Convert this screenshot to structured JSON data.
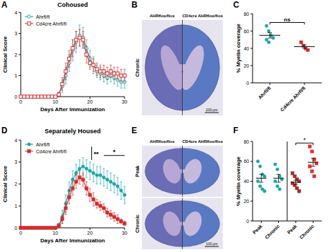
{
  "chart_data": [
    {
      "type": "line",
      "panel": "A",
      "title": "Cohoused",
      "x_label": "Days After Immunization",
      "y_label": "Clinical Score",
      "x": [
        0,
        1,
        2,
        3,
        4,
        5,
        6,
        7,
        8,
        9,
        10,
        11,
        12,
        13,
        14,
        15,
        16,
        17,
        18,
        19,
        20,
        21,
        22,
        23,
        24,
        25,
        26,
        27,
        28,
        29,
        30
      ],
      "xlim": [
        0,
        30
      ],
      "xticks": [
        0,
        10,
        20,
        30
      ],
      "ylim": [
        0,
        4
      ],
      "yticks": [
        0,
        1,
        2,
        3,
        4
      ],
      "legend": "upper left",
      "series": [
        {
          "name": "Ahrfl/fl",
          "color": "#1ba5a6",
          "marker": "circle-open",
          "values": [
            0,
            0,
            0,
            0,
            0,
            0,
            0,
            0,
            0,
            0,
            0,
            0.1,
            0.5,
            1.0,
            1.6,
            2.2,
            2.6,
            2.9,
            2.8,
            2.3,
            1.8,
            1.5,
            1.2,
            1.1,
            1.0,
            0.9,
            1.0,
            0.9,
            0.8,
            0.7,
            0.7
          ],
          "errors": [
            0,
            0,
            0,
            0,
            0,
            0,
            0,
            0,
            0,
            0,
            0,
            0.1,
            0.3,
            0.4,
            0.4,
            0.5,
            0.5,
            0.5,
            0.5,
            0.4,
            0.4,
            0.4,
            0.3,
            0.3,
            0.3,
            0.3,
            0.3,
            0.3,
            0.3,
            0.3,
            0.3
          ]
        },
        {
          "name": "Cd4cre Ahrfl/fl",
          "color": "#d42a2a",
          "marker": "square-open",
          "values": [
            0,
            0,
            0,
            0,
            0,
            0,
            0,
            0,
            0,
            0,
            0,
            0.1,
            0.6,
            1.2,
            1.8,
            2.3,
            2.7,
            2.8,
            2.7,
            2.0,
            1.6,
            1.5,
            1.3,
            1.2,
            1.2,
            1.1,
            1.2,
            1.1,
            1.1,
            1.0,
            1.0
          ],
          "errors": [
            0,
            0,
            0,
            0,
            0,
            0,
            0,
            0,
            0,
            0,
            0,
            0.1,
            0.3,
            0.4,
            0.4,
            0.4,
            0.4,
            0.4,
            0.4,
            0.4,
            0.3,
            0.3,
            0.3,
            0.3,
            0.3,
            0.3,
            0.3,
            0.3,
            0.3,
            0.3,
            0.3
          ]
        }
      ],
      "annotations": []
    },
    {
      "type": "dot",
      "panel": "C",
      "y_label": "% Myelin coverage",
      "categories": [
        "Ahrfl/fl",
        "Cd4cre Ahrfl/fl"
      ],
      "ylim": [
        0,
        80
      ],
      "yticks": [
        0,
        20,
        40,
        60,
        80
      ],
      "groups": [
        {
          "color": "#1ba5a6",
          "marker": "circle",
          "values": [
            66,
            60,
            55,
            52,
            50,
            47
          ],
          "mean": 55,
          "error": 3
        },
        {
          "color": "#d42a2a",
          "marker": "square",
          "values": [
            47,
            43,
            40,
            38
          ],
          "mean": 42,
          "error": 2
        }
      ],
      "annotations": [
        {
          "text": "ns",
          "between": [
            0,
            1
          ]
        }
      ]
    },
    {
      "type": "line",
      "panel": "D",
      "title": "Separately Housed",
      "x_label": "Days After Immunization",
      "y_label": "Clinical Score",
      "x": [
        0,
        1,
        2,
        3,
        4,
        5,
        6,
        7,
        8,
        9,
        10,
        11,
        12,
        13,
        14,
        15,
        16,
        17,
        18,
        19,
        20,
        21,
        22,
        23,
        24,
        25,
        26,
        27,
        28,
        29,
        30
      ],
      "xlim": [
        0,
        30
      ],
      "xticks": [
        0,
        10,
        20,
        30
      ],
      "ylim": [
        0,
        4
      ],
      "yticks": [
        0,
        1,
        2,
        3,
        4
      ],
      "legend": "upper left",
      "series": [
        {
          "name": "Ahrfl/fl",
          "color": "#1ba5a6",
          "marker": "circle",
          "values": [
            0,
            0,
            0,
            0,
            0,
            0,
            0,
            0,
            0,
            0,
            0,
            0.1,
            0.5,
            1.1,
            1.7,
            2.2,
            2.5,
            2.7,
            2.8,
            2.7,
            2.6,
            2.5,
            2.4,
            2.4,
            2.3,
            2.2,
            2.1,
            2.0,
            1.9,
            1.7,
            1.5
          ],
          "errors": [
            0,
            0,
            0,
            0,
            0,
            0,
            0,
            0,
            0,
            0,
            0,
            0.1,
            0.3,
            0.4,
            0.4,
            0.4,
            0.4,
            0.4,
            0.4,
            0.4,
            0.4,
            0.4,
            0.4,
            0.4,
            0.4,
            0.4,
            0.4,
            0.4,
            0.4,
            0.4,
            0.4
          ]
        },
        {
          "name": "Cd4cre Ahrfl/fl",
          "color": "#d42a2a",
          "marker": "square",
          "values": [
            0,
            0,
            0,
            0,
            0,
            0,
            0,
            0,
            0,
            0,
            0,
            0.1,
            0.4,
            0.9,
            1.4,
            1.8,
            2.1,
            2.3,
            2.2,
            1.8,
            1.5,
            1.3,
            1.1,
            1.0,
            0.9,
            0.7,
            0.6,
            0.5,
            0.4,
            0.3,
            0.2
          ],
          "errors": [
            0,
            0,
            0,
            0,
            0,
            0,
            0,
            0,
            0,
            0,
            0,
            0.1,
            0.2,
            0.3,
            0.3,
            0.3,
            0.3,
            0.3,
            0.3,
            0.3,
            0.3,
            0.3,
            0.2,
            0.2,
            0.2,
            0.2,
            0.2,
            0.2,
            0.2,
            0.1,
            0.1
          ]
        }
      ],
      "annotations": [
        {
          "text": "**",
          "x": 20.5,
          "y": [
            3.1,
            3.7
          ]
        },
        {
          "text": "*",
          "x": [
            24,
            30
          ],
          "y": 3.3
        }
      ]
    },
    {
      "type": "dot",
      "panel": "F",
      "y_label": "% Myelin coverage",
      "categories": [
        "Peak",
        "Chronic",
        "Peak",
        "Chronic"
      ],
      "ylim": [
        0,
        80
      ],
      "yticks": [
        0,
        20,
        40,
        60,
        80
      ],
      "groups": [
        {
          "color": "#1ba5a6",
          "marker": "circle",
          "values": [
            60,
            55,
            47,
            45,
            40,
            35,
            32,
            30
          ],
          "mean": 43,
          "error": 4
        },
        {
          "color": "#1ba5a6",
          "marker": "circle",
          "values": [
            57,
            52,
            45,
            42,
            40,
            35,
            32
          ],
          "mean": 43,
          "error": 4
        },
        {
          "color": "#a52a2a",
          "marker": "square",
          "values": [
            48,
            45,
            42,
            40,
            38,
            36,
            33,
            30
          ],
          "mean": 39,
          "error": 2
        },
        {
          "color": "#e0302a",
          "marker": "square",
          "values": [
            75,
            70,
            62,
            58,
            55,
            50,
            45
          ],
          "mean": 59,
          "error": 4
        }
      ],
      "annotations": [
        {
          "text": "*",
          "between": [
            2,
            3
          ]
        }
      ]
    }
  ],
  "images": [
    {
      "panel": "B",
      "columns": [
        "AHRflox/flox",
        "CD4cre AHRflox/flox"
      ],
      "rows": [
        "Chronic"
      ],
      "scale_bar": "200 µm"
    },
    {
      "panel": "E",
      "columns": [
        "AHRflox/flox",
        "CD4cre AHRflox/flox"
      ],
      "rows": [
        "Peak",
        "Chronic"
      ],
      "scale_bar": "100 µm"
    }
  ]
}
